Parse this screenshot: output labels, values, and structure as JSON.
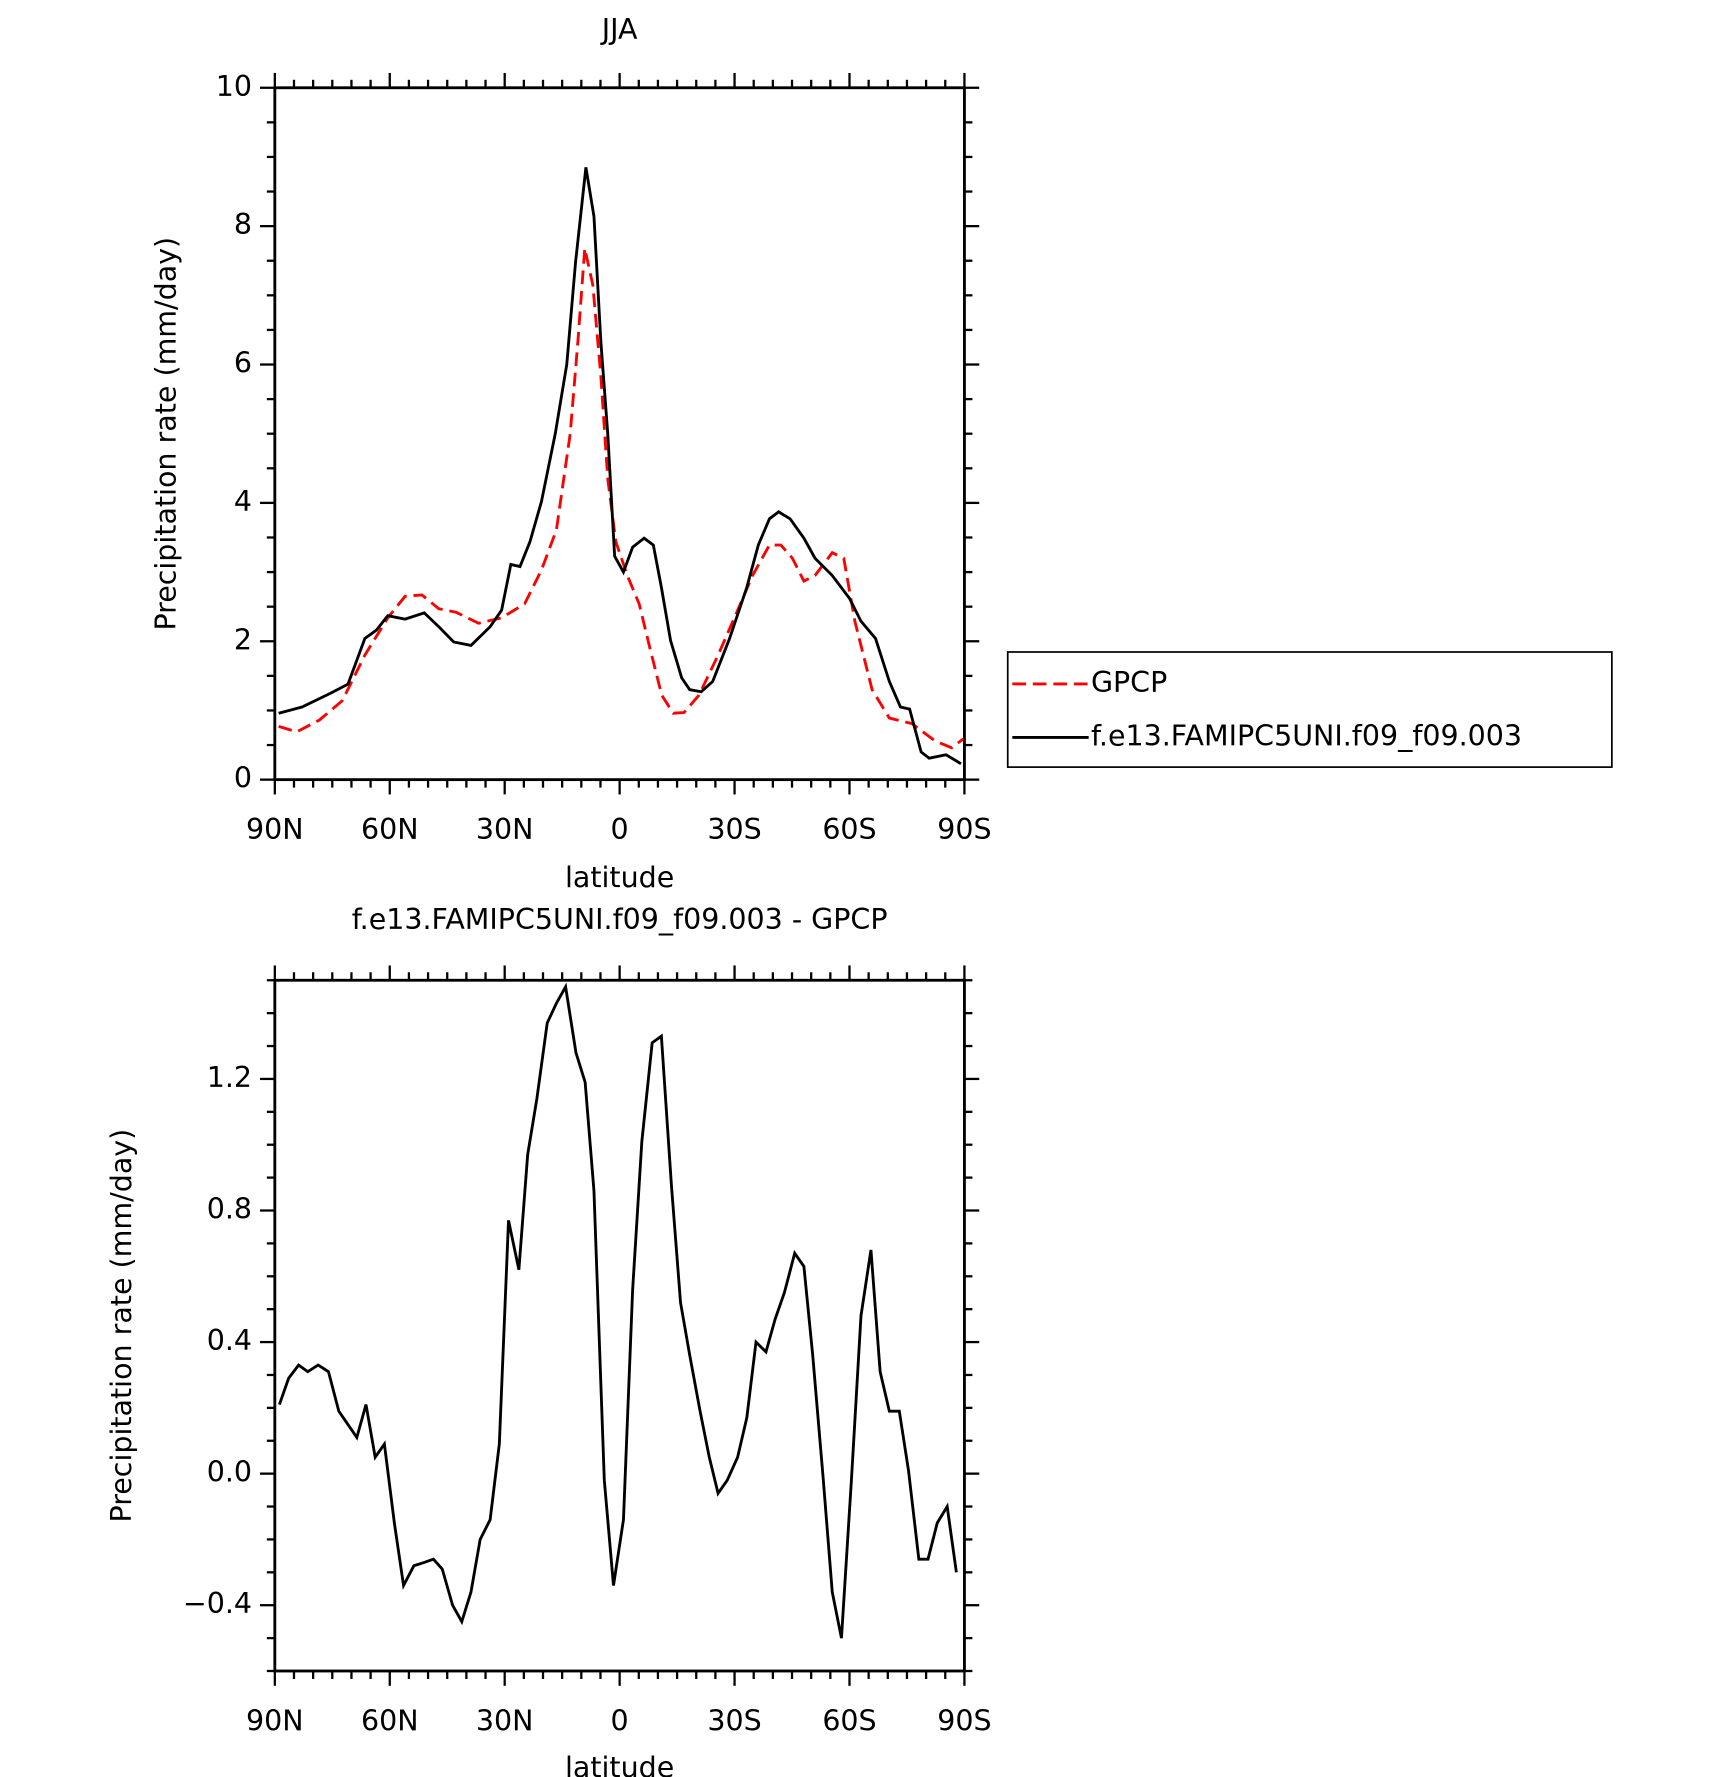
{
  "chart_data": [
    {
      "type": "line",
      "title": "JJA",
      "x_label": "latitude",
      "y_label": "Precipitation rate (mm/day)",
      "xlim": [
        90,
        -90
      ],
      "xticks": [
        {
          "value": 90,
          "label": "90N"
        },
        {
          "value": 60,
          "label": "60N"
        },
        {
          "value": 30,
          "label": "30N"
        },
        0,
        {
          "value": -30,
          "label": "30S"
        },
        {
          "value": -60,
          "label": "60S"
        },
        {
          "value": -90,
          "label": "90S"
        }
      ],
      "ylim": [
        0,
        10
      ],
      "yticks": [
        0,
        2,
        4,
        6,
        8,
        10
      ],
      "legend": "right",
      "series": [
        {
          "name": "GPCP",
          "color": "#ff0000",
          "dash": true,
          "x": [
            89,
            84.3,
            78.4,
            72.4,
            66.5,
            60.5,
            56,
            51.6,
            47.2,
            42.7,
            36.8,
            30.8,
            24.8,
            20.4,
            16.5,
            12.9,
            10.9,
            9.1,
            7,
            4.9,
            3.1,
            1.0,
            -2,
            -5.1,
            -8,
            -11,
            -14,
            -16.8,
            -20.7,
            -25.7,
            -30.2,
            -34.7,
            -39.1,
            -42.1,
            -45.1,
            -48.1,
            -51,
            -55.5,
            -58.5,
            -61.4,
            -65.9,
            -70.4,
            -76.3,
            -82.3,
            -86.7,
            -89.7
          ],
          "values": [
            0.77,
            0.69,
            0.86,
            1.14,
            1.8,
            2.34,
            2.65,
            2.67,
            2.47,
            2.42,
            2.26,
            2.34,
            2.54,
            3.03,
            3.61,
            5.0,
            6.33,
            7.68,
            7.15,
            5.83,
            4.35,
            3.44,
            2.95,
            2.54,
            1.88,
            1.22,
            0.96,
            0.97,
            1.22,
            1.8,
            2.37,
            2.95,
            3.39,
            3.39,
            3.2,
            2.87,
            2.95,
            3.28,
            3.2,
            2.29,
            1.3,
            0.89,
            0.81,
            0.56,
            0.46,
            0.59
          ]
        },
        {
          "name": "f.e13.FAMIPC5UNI.f09_f09.003",
          "color": "#000000",
          "dash": false,
          "x": [
            89,
            82.9,
            75.4,
            70.9,
            66.5,
            63.5,
            60.5,
            56,
            51,
            47.2,
            43.3,
            38.8,
            33.8,
            30.8,
            28.4,
            26,
            23.4,
            20.4,
            16.8,
            13.8,
            11.5,
            8.8,
            6.7,
            4.9,
            3.1,
            1.3,
            -1,
            -3.4,
            -6.4,
            -8.8,
            -10.9,
            -13.3,
            -16.2,
            -18.3,
            -21.3,
            -24.3,
            -28.7,
            -33.2,
            -36.2,
            -39.1,
            -41.5,
            -44.5,
            -48.1,
            -51,
            -55.5,
            -60,
            -63,
            -66.8,
            -70.4,
            -73.3,
            -75.7,
            -78.7,
            -80.8,
            -85.2,
            -89.1
          ],
          "values": [
            0.96,
            1.05,
            1.25,
            1.38,
            2.04,
            2.16,
            2.37,
            2.32,
            2.41,
            2.21,
            1.99,
            1.94,
            2.21,
            2.45,
            3.11,
            3.08,
            3.44,
            4.02,
            5.0,
            6.0,
            7.48,
            8.85,
            8.14,
            6.33,
            5.0,
            3.23,
            3.0,
            3.36,
            3.49,
            3.39,
            2.78,
            2.01,
            1.47,
            1.3,
            1.27,
            1.42,
            2.04,
            2.78,
            3.39,
            3.77,
            3.87,
            3.77,
            3.49,
            3.2,
            2.95,
            2.62,
            2.29,
            2.04,
            1.42,
            1.05,
            1.02,
            0.4,
            0.31,
            0.36,
            0.23
          ]
        }
      ]
    },
    {
      "type": "line",
      "title": "f.e13.FAMIPC5UNI.f09_f09.003 - GPCP",
      "x_label": "latitude",
      "y_label": "Precipitation rate (mm/day)",
      "xlim": [
        90,
        -90
      ],
      "xticks": [
        {
          "value": 90,
          "label": "90N"
        },
        {
          "value": 60,
          "label": "60N"
        },
        {
          "value": 30,
          "label": "30N"
        },
        0,
        {
          "value": -30,
          "label": "30S"
        },
        {
          "value": -60,
          "label": "60S"
        },
        {
          "value": -90,
          "label": "90S"
        }
      ],
      "ylim": [
        -0.6,
        1.5
      ],
      "yticks": [
        {
          "value": -0.4,
          "label": "−0.4"
        },
        {
          "value": 0,
          "label": "0.0"
        },
        0.4,
        0.8,
        1.2
      ],
      "series": [
        {
          "color": "#000000",
          "dash": false,
          "x": [
            88.8,
            86.4,
            83.8,
            81.4,
            78.7,
            76,
            73.3,
            68.6,
            66.2,
            63.8,
            61.4,
            58.8,
            56.4,
            53.7,
            51,
            48.6,
            46.3,
            43.6,
            41.2,
            38.8,
            36.4,
            33.8,
            31.4,
            29,
            26.3,
            24,
            21.6,
            18.9,
            16.5,
            14.1,
            11.4,
            9,
            6.7,
            4,
            1.6,
            -1,
            -3.4,
            -5.8,
            -8.5,
            -10.9,
            -13.5,
            -15.9,
            -18.3,
            -21,
            -23.4,
            -25.7,
            -28.1,
            -30.8,
            -33.2,
            -35.6,
            -38.2,
            -40.6,
            -43,
            -45.7,
            -48.1,
            -50.4,
            -53.1,
            -55.5,
            -57.9,
            -60.5,
            -63,
            -65.6,
            -68,
            -70.4,
            -73,
            -75.4,
            -78.1,
            -80.5,
            -82.9,
            -85.5,
            -87.9
          ],
          "values": [
            0.21,
            0.29,
            0.33,
            0.31,
            0.33,
            0.31,
            0.19,
            0.11,
            0.21,
            0.05,
            0.09,
            -0.15,
            -0.34,
            -0.28,
            -0.27,
            -0.26,
            -0.29,
            -0.4,
            -0.45,
            -0.36,
            -0.2,
            -0.14,
            0.09,
            0.77,
            0.62,
            0.97,
            1.14,
            1.37,
            1.43,
            1.48,
            1.28,
            1.19,
            0.86,
            -0.02,
            -0.34,
            -0.14,
            0.56,
            1.01,
            1.31,
            1.33,
            0.88,
            0.52,
            0.36,
            0.19,
            0.05,
            -0.06,
            -0.02,
            0.05,
            0.17,
            0.4,
            0.37,
            0.47,
            0.55,
            0.67,
            0.63,
            0.36,
            -0.01,
            -0.36,
            -0.5,
            -0.02,
            0.48,
            0.68,
            0.31,
            0.19,
            0.19,
            0.01,
            -0.26,
            -0.26,
            -0.15,
            -0.1,
            -0.3
          ]
        }
      ]
    }
  ]
}
